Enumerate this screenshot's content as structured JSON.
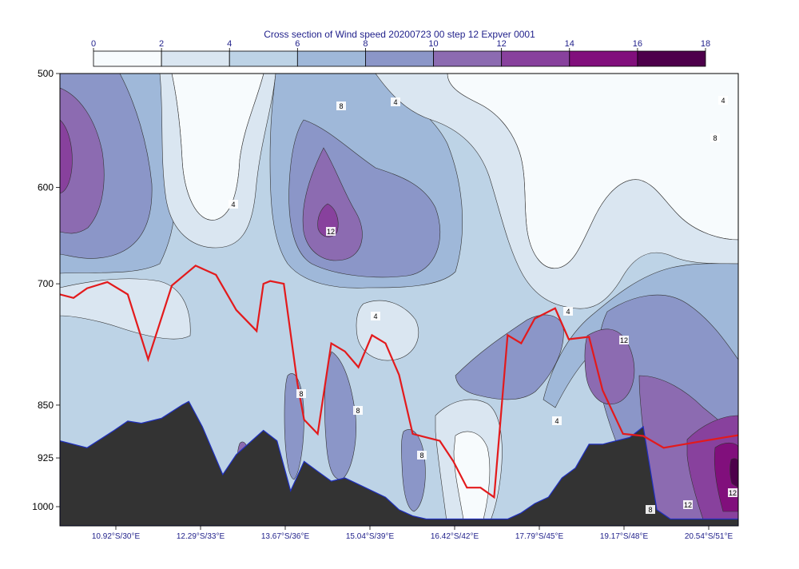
{
  "chart_data": {
    "type": "heatmap",
    "title": "Cross section of Wind speed 20200723 00 step 12 Expver 0001",
    "colorbar": {
      "ticks": [
        "0",
        "2",
        "4",
        "6",
        "8",
        "10",
        "12",
        "14",
        "16",
        "18"
      ],
      "colors": [
        "#f7fbfd",
        "#dae6f1",
        "#bdd3e6",
        "#9fb8d9",
        "#8b96c8",
        "#8c6bb1",
        "#88419d",
        "#810f7c",
        "#4d004b"
      ]
    },
    "y_axis": {
      "label": "",
      "scale": "log",
      "inverted": true,
      "range": [
        500,
        1000
      ],
      "ticks": [
        "500",
        "600",
        "700",
        "850",
        "925",
        "1000"
      ]
    },
    "x_axis": {
      "label": "",
      "ticks": [
        "10.92°S/30°E",
        "12.29°S/33°E",
        "13.67°S/36°E",
        "15.04°S/39°E",
        "16.42°S/42°E",
        "17.79°S/45°E",
        "19.17°S/48°E",
        "20.54°S/51°E"
      ]
    },
    "contour_labels": [
      "8",
      "4",
      "12",
      "4",
      "4",
      "4",
      "8",
      "8",
      "8",
      "8",
      "4",
      "12",
      "4",
      "8",
      "12",
      "12"
    ],
    "boundary_layer_line": {
      "color": "#e31a1c",
      "x": [
        0.0,
        0.02,
        0.04,
        0.07,
        0.1,
        0.13,
        0.165,
        0.2,
        0.23,
        0.26,
        0.29,
        0.3,
        0.31,
        0.33,
        0.35,
        0.36,
        0.38,
        0.4,
        0.42,
        0.44,
        0.46,
        0.48,
        0.5,
        0.52,
        0.54,
        0.56,
        0.58,
        0.6,
        0.62,
        0.64,
        0.66,
        0.68,
        0.7,
        0.73,
        0.75,
        0.78,
        0.8,
        0.83,
        0.86,
        0.89,
        0.92,
        0.95,
        0.98,
        1.0
      ],
      "pressure": [
        712,
        716,
        705,
        698,
        712,
        790,
        702,
        680,
        690,
        730,
        755,
        700,
        697,
        700,
        820,
        870,
        890,
        770,
        780,
        800,
        760,
        770,
        810,
        890,
        895,
        900,
        930,
        970,
        970,
        985,
        760,
        770,
        740,
        728,
        765,
        762,
        830,
        890,
        893,
        910,
        905,
        900,
        895,
        892
      ],
      "pressure_note": "hPa"
    },
    "orography": {
      "color": "#333333",
      "x": [
        0.0,
        0.04,
        0.08,
        0.1,
        0.12,
        0.15,
        0.18,
        0.19,
        0.21,
        0.24,
        0.26,
        0.3,
        0.32,
        0.34,
        0.36,
        0.38,
        0.4,
        0.42,
        0.44,
        0.48,
        0.5,
        0.52,
        0.54,
        0.58,
        0.6,
        0.62,
        0.64,
        0.66,
        0.68,
        0.7,
        0.72,
        0.74,
        0.76,
        0.78,
        0.8,
        0.82,
        0.84,
        0.86,
        0.88,
        0.9,
        0.92,
        0.95,
        0.98,
        1.0
      ],
      "pressure": [
        900,
        910,
        885,
        872,
        875,
        868,
        850,
        845,
        880,
        950,
        920,
        885,
        900,
        975,
        930,
        945,
        960,
        955,
        965,
        985,
        1005,
        1015,
        1020,
        1020,
        1020,
        1020,
        1020,
        1020,
        1010,
        995,
        985,
        955,
        940,
        905,
        905,
        900,
        895,
        880,
        1005,
        1020,
        1020,
        1020,
        1020,
        1020
      ]
    }
  }
}
